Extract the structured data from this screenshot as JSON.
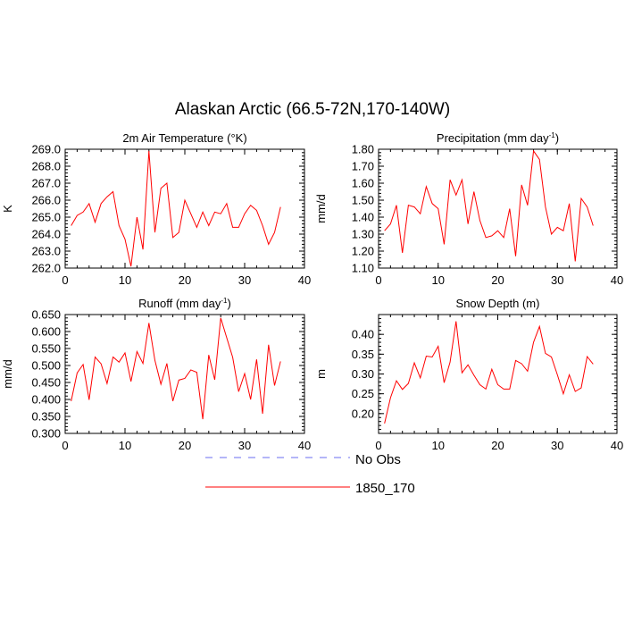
{
  "figure": {
    "title": "Alaskan Arctic (66.5-72N,170-140W)"
  },
  "legend": {
    "placement": "bottom-center",
    "entries": [
      {
        "label": "No Obs",
        "color": "#6a6ef0",
        "style": "dashed"
      },
      {
        "label": "1850_170",
        "color": "#ff0000",
        "style": "solid"
      }
    ]
  },
  "chart_data": [
    {
      "type": "line",
      "title": "2m Air Temperature (°K)",
      "ylabel": "K",
      "xlabel": "",
      "xlim": [
        0,
        40
      ],
      "ylim": [
        262.0,
        269.0
      ],
      "xticks": [
        0,
        10,
        20,
        30,
        40
      ],
      "yticks": [
        "262.0",
        "263.0",
        "264.0",
        "265.0",
        "266.0",
        "267.0",
        "268.0",
        "269.0"
      ],
      "series": [
        {
          "name": "1850_170",
          "color": "#ff0000",
          "x": [
            1,
            2,
            3,
            4,
            5,
            6,
            7,
            8,
            9,
            10,
            11,
            12,
            13,
            14,
            15,
            16,
            17,
            18,
            19,
            20,
            21,
            22,
            23,
            24,
            25,
            26,
            27,
            28,
            29,
            30,
            31,
            32,
            33,
            34,
            35,
            36
          ],
          "values": [
            264.5,
            265.1,
            265.3,
            265.8,
            264.7,
            265.8,
            266.2,
            266.5,
            264.5,
            263.7,
            262.1,
            265.0,
            263.1,
            268.9,
            264.1,
            266.7,
            267.0,
            263.8,
            264.1,
            266.0,
            265.2,
            264.4,
            265.3,
            264.5,
            265.3,
            265.2,
            265.8,
            264.4,
            264.4,
            265.2,
            265.7,
            265.4,
            264.5,
            263.4,
            264.1,
            265.6
          ]
        }
      ]
    },
    {
      "type": "line",
      "title": "Precipitation (mm day",
      "title_sup": "-1",
      "title_end": ")",
      "ylabel": "mm/d",
      "xlabel": "",
      "xlim": [
        0,
        40
      ],
      "ylim": [
        1.1,
        1.8
      ],
      "xticks": [
        0,
        10,
        20,
        30,
        40
      ],
      "yticks": [
        "1.10",
        "1.20",
        "1.30",
        "1.40",
        "1.50",
        "1.60",
        "1.70",
        "1.80"
      ],
      "series": [
        {
          "name": "1850_170",
          "color": "#ff0000",
          "x": [
            1,
            2,
            3,
            4,
            5,
            6,
            7,
            8,
            9,
            10,
            11,
            12,
            13,
            14,
            15,
            16,
            17,
            18,
            19,
            20,
            21,
            22,
            23,
            24,
            25,
            26,
            27,
            28,
            29,
            30,
            31,
            32,
            33,
            34,
            35,
            36
          ],
          "values": [
            1.32,
            1.36,
            1.47,
            1.19,
            1.47,
            1.46,
            1.42,
            1.58,
            1.48,
            1.45,
            1.24,
            1.62,
            1.53,
            1.62,
            1.36,
            1.55,
            1.38,
            1.28,
            1.29,
            1.32,
            1.28,
            1.45,
            1.17,
            1.59,
            1.47,
            1.79,
            1.74,
            1.46,
            1.3,
            1.34,
            1.32,
            1.48,
            1.14,
            1.51,
            1.46,
            1.35
          ]
        }
      ]
    },
    {
      "type": "line",
      "title": "Runoff (mm day",
      "title_sup": "-1",
      "title_end": ")",
      "ylabel": "mm/d",
      "xlabel": "",
      "xlim": [
        0,
        40
      ],
      "ylim": [
        0.3,
        0.65
      ],
      "xticks": [
        0,
        10,
        20,
        30,
        40
      ],
      "yticks": [
        "0.300",
        "0.350",
        "0.400",
        "0.450",
        "0.500",
        "0.550",
        "0.600",
        "0.650"
      ],
      "series": [
        {
          "name": "1850_170",
          "color": "#ff0000",
          "x": [
            1,
            2,
            3,
            4,
            5,
            6,
            7,
            8,
            9,
            10,
            11,
            12,
            13,
            14,
            15,
            16,
            17,
            18,
            19,
            20,
            21,
            22,
            23,
            24,
            25,
            26,
            27,
            28,
            29,
            30,
            31,
            32,
            33,
            34,
            35,
            36
          ],
          "values": [
            0.395,
            0.478,
            0.503,
            0.399,
            0.525,
            0.505,
            0.447,
            0.525,
            0.51,
            0.537,
            0.453,
            0.541,
            0.506,
            0.625,
            0.515,
            0.445,
            0.506,
            0.395,
            0.457,
            0.462,
            0.487,
            0.48,
            0.342,
            0.531,
            0.458,
            0.64,
            0.582,
            0.524,
            0.423,
            0.476,
            0.4,
            0.518,
            0.358,
            0.561,
            0.441,
            0.512
          ]
        }
      ]
    },
    {
      "type": "line",
      "title": "Snow Depth (m)",
      "ylabel": "m",
      "xlabel": "",
      "xlim": [
        0,
        40
      ],
      "ylim": [
        0.15,
        0.45
      ],
      "xticks": [
        0,
        10,
        20,
        30,
        40
      ],
      "yticks": [
        "0.20",
        "0.25",
        "0.30",
        "0.35",
        "0.40"
      ],
      "yticks_values": [
        0.2,
        0.25,
        0.3,
        0.35,
        0.4
      ],
      "series": [
        {
          "name": "1850_170",
          "color": "#ff0000",
          "x": [
            1,
            2,
            3,
            4,
            5,
            6,
            7,
            8,
            9,
            10,
            11,
            12,
            13,
            14,
            15,
            16,
            17,
            18,
            19,
            20,
            21,
            22,
            23,
            24,
            25,
            26,
            27,
            28,
            29,
            30,
            31,
            32,
            33,
            34,
            35,
            36
          ],
          "values": [
            0.175,
            0.24,
            0.283,
            0.261,
            0.276,
            0.328,
            0.29,
            0.345,
            0.343,
            0.37,
            0.278,
            0.33,
            0.433,
            0.303,
            0.323,
            0.297,
            0.273,
            0.262,
            0.312,
            0.273,
            0.262,
            0.262,
            0.334,
            0.326,
            0.307,
            0.38,
            0.42,
            0.352,
            0.343,
            0.298,
            0.25,
            0.298,
            0.256,
            0.265,
            0.344,
            0.325
          ]
        }
      ]
    }
  ]
}
